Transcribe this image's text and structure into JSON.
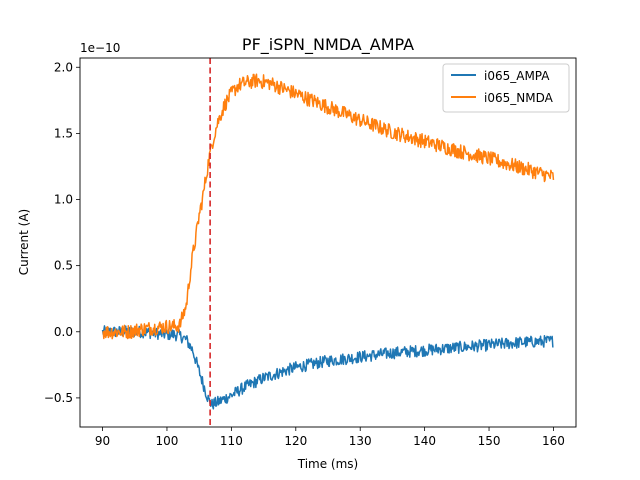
{
  "chart_data": {
    "type": "line",
    "title": "PF_iSPN_NMDA_AMPA",
    "xlabel": "Time (ms)",
    "ylabel": "Current (A)",
    "y_offset_label": "1e−10",
    "y_scale": 1e-10,
    "xlim": [
      86.5,
      163.5
    ],
    "ylim": [
      -0.72,
      2.07
    ],
    "x_ticks": [
      90,
      100,
      110,
      120,
      130,
      140,
      150,
      160
    ],
    "y_ticks": [
      -0.5,
      0.0,
      0.5,
      1.0,
      1.5,
      2.0
    ],
    "x_tick_labels": [
      "90",
      "100",
      "110",
      "120",
      "130",
      "140",
      "150",
      "160"
    ],
    "y_tick_labels": [
      "−0.5",
      "0.0",
      "0.5",
      "1.0",
      "1.5",
      "2.0"
    ],
    "grid": false,
    "legend_position": "top-right",
    "vline": {
      "x": 106.7,
      "color": "#d62728",
      "style": "dashed"
    },
    "series": [
      {
        "name": "i065_AMPA",
        "color": "#1f77b4",
        "x": [
          90,
          92,
          94,
          96,
          98,
          100,
          101,
          102,
          103,
          104,
          105,
          106,
          106.5,
          107,
          108,
          110,
          112,
          115,
          118,
          120,
          125,
          130,
          135,
          140,
          145,
          150,
          155,
          160
        ],
        "y": [
          0.0,
          0.0,
          0.0,
          0.0,
          -0.01,
          -0.02,
          -0.02,
          -0.03,
          -0.06,
          -0.14,
          -0.3,
          -0.45,
          -0.52,
          -0.55,
          -0.53,
          -0.48,
          -0.42,
          -0.35,
          -0.3,
          -0.27,
          -0.22,
          -0.19,
          -0.16,
          -0.14,
          -0.12,
          -0.1,
          -0.08,
          -0.07
        ]
      },
      {
        "name": "i065_NMDA",
        "color": "#ff7f0e",
        "x": [
          90,
          92,
          94,
          96,
          98,
          100,
          101,
          102,
          103,
          103.5,
          104,
          104.5,
          105,
          105.5,
          106,
          106.5,
          107,
          107.5,
          108,
          109,
          110,
          111,
          112,
          114,
          116,
          118,
          120,
          125,
          130,
          135,
          140,
          145,
          150,
          155,
          160
        ],
        "y": [
          0.0,
          0.0,
          0.0,
          0.02,
          0.03,
          0.04,
          0.04,
          0.05,
          0.2,
          0.4,
          0.58,
          0.72,
          0.88,
          1.0,
          1.15,
          1.3,
          1.42,
          1.52,
          1.6,
          1.72,
          1.8,
          1.86,
          1.88,
          1.9,
          1.88,
          1.84,
          1.8,
          1.7,
          1.6,
          1.51,
          1.44,
          1.37,
          1.31,
          1.24,
          1.17
        ]
      }
    ]
  }
}
